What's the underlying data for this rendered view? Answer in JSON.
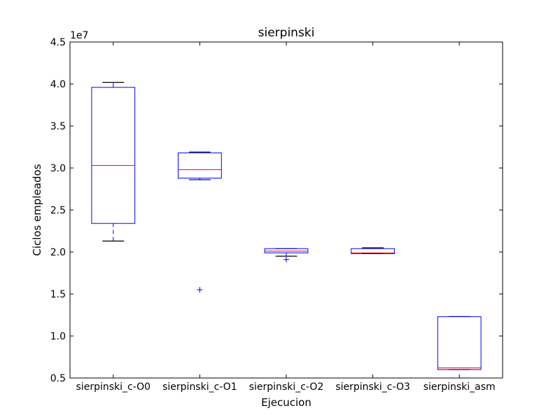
{
  "chart_data": {
    "type": "box",
    "title": "sierpinski",
    "xlabel": "Ejecucion",
    "ylabel": "Ciclos empleados",
    "y_scale_label": "1e7",
    "y_scale": 10000000,
    "ylim": [
      5000000,
      45000000
    ],
    "yticks": [
      5000000,
      10000000,
      15000000,
      20000000,
      25000000,
      30000000,
      35000000,
      40000000,
      45000000
    ],
    "ytick_labels": [
      "0.5",
      "1.0",
      "1.5",
      "2.0",
      "2.5",
      "3.0",
      "3.5",
      "4.0",
      "4.5"
    ],
    "grid": false,
    "colors": {
      "box": "#0000ff",
      "median": "#ff0000",
      "axis": "#000000"
    },
    "categories": [
      "sierpinski_c-O0",
      "sierpinski_c-O1",
      "sierpinski_c-O2",
      "sierpinski_c-O3",
      "sierpinski_asm"
    ],
    "boxes": [
      {
        "whisker_low": 21300000,
        "q1": 23400000,
        "median": 30300000,
        "q3": 39600000,
        "whisker_high": 40200000,
        "outliers": []
      },
      {
        "whisker_low": 28600000,
        "q1": 28800000,
        "median": 29800000,
        "q3": 31800000,
        "whisker_high": 31900000,
        "outliers": [
          15500000
        ]
      },
      {
        "whisker_low": 19500000,
        "q1": 19900000,
        "median": 20100000,
        "q3": 20400000,
        "whisker_high": 20400000,
        "outliers": [
          19100000
        ]
      },
      {
        "whisker_low": 19800000,
        "q1": 19800000,
        "median": 19900000,
        "q3": 20400000,
        "whisker_high": 20500000,
        "outliers": []
      },
      {
        "whisker_low": 6000000,
        "q1": 6000000,
        "median": 6200000,
        "q3": 12300000,
        "whisker_high": 12300000,
        "outliers": []
      }
    ]
  }
}
